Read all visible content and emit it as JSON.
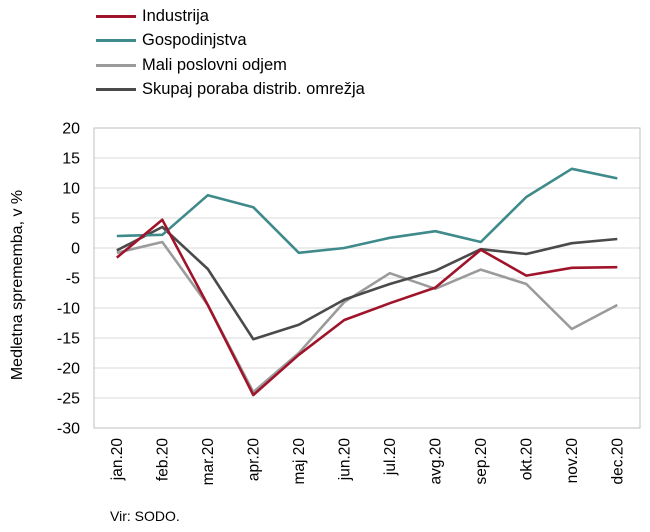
{
  "chart_data": {
    "type": "line",
    "categories": [
      "jan.20",
      "feb.20",
      "mar.20",
      "apr.20",
      "maj 20",
      "jun.20",
      "jul.20",
      "avg.20",
      "sep.20",
      "okt.20",
      "nov.20",
      "dec.20"
    ],
    "series": [
      {
        "name": "Industrija",
        "color": "#a0142b",
        "values": [
          -1.6,
          4.7,
          -9.5,
          -24.5,
          -17.8,
          -12.0,
          -9.2,
          -6.6,
          -0.3,
          -4.6,
          -3.3,
          -3.2
        ]
      },
      {
        "name": "Gospodinjstva",
        "color": "#3f8a8b",
        "values": [
          2.0,
          2.2,
          8.8,
          6.8,
          -0.8,
          0.0,
          1.7,
          2.8,
          1.0,
          8.5,
          13.2,
          11.6
        ]
      },
      {
        "name": "Mali poslovni odjem",
        "color": "#9b9b9b",
        "values": [
          -0.8,
          1.0,
          -9.5,
          -24.0,
          -17.5,
          -9.0,
          -4.2,
          -6.8,
          -3.6,
          -6.0,
          -13.5,
          -9.5
        ]
      },
      {
        "name": "Skupaj poraba distrib. omrežja",
        "color": "#4a4a4a",
        "values": [
          -0.4,
          3.5,
          -3.5,
          -15.2,
          -12.8,
          -8.6,
          -6.0,
          -3.8,
          -0.2,
          -1.0,
          0.8,
          1.5
        ]
      }
    ],
    "ylabel": "Medletna sprememba, v %",
    "ylim": [
      -30,
      20
    ],
    "yticks": [
      -30,
      -25,
      -20,
      -15,
      -10,
      -5,
      0,
      5,
      10,
      15,
      20
    ],
    "grid": true,
    "legend": "top-left"
  },
  "source": "Vir: SODO."
}
